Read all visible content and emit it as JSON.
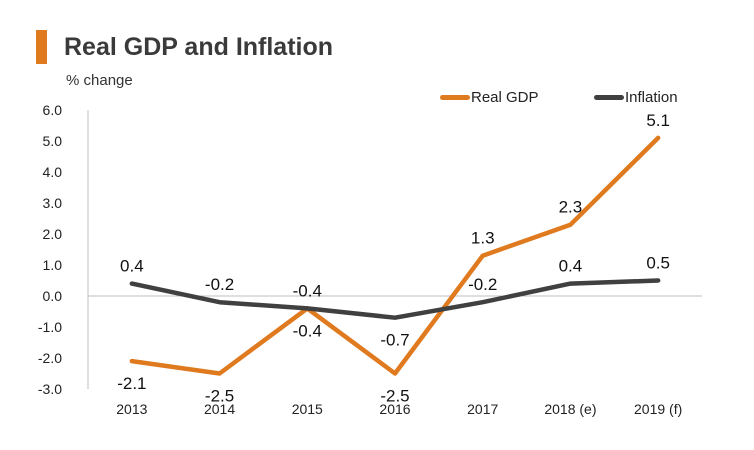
{
  "title": "Real GDP and Inflation",
  "subtitle": "% change",
  "colors": {
    "accent": "#E07A1F",
    "gdp": "#E07A1F",
    "inflation": "#404040"
  },
  "chart_data": {
    "type": "line",
    "title": "Real GDP and Inflation",
    "ylabel": "% change",
    "xlabel": "",
    "categories": [
      "2013",
      "2014",
      "2015",
      "2016",
      "2017",
      "2018 (e)",
      "2019 (f)"
    ],
    "ylim": [
      -3.0,
      6.0
    ],
    "yticks": [
      "6.0",
      "5.0",
      "4.0",
      "3.0",
      "2.0",
      "1.0",
      "0.0",
      "-1.0",
      "-2.0",
      "-3.0"
    ],
    "legend_position": "top-right",
    "series": [
      {
        "name": "Real GDP",
        "color": "#E07A1F",
        "values": [
          -2.1,
          -2.5,
          -0.4,
          -2.5,
          1.3,
          2.3,
          5.1
        ],
        "labels": [
          "-2.1",
          "-2.5",
          "-0.4",
          "-2.5",
          "1.3",
          "2.3",
          "5.1"
        ]
      },
      {
        "name": "Inflation",
        "color": "#404040",
        "values": [
          0.4,
          -0.2,
          -0.4,
          -0.7,
          -0.2,
          0.4,
          0.5
        ],
        "labels": [
          "0.4",
          "-0.2",
          "-0.4",
          "-0.7",
          "-0.2",
          "0.4",
          "0.5"
        ]
      }
    ]
  }
}
